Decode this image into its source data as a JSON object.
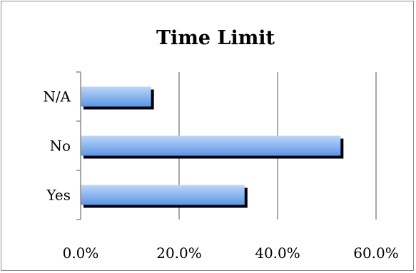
{
  "chart_data": {
    "type": "bar",
    "orientation": "horizontal",
    "title": "Time Limit",
    "xlabel": "",
    "ylabel": "",
    "categories": [
      "Yes",
      "No",
      "N/A"
    ],
    "values": [
      33.3,
      52.8,
      14.3
    ],
    "xlim": [
      0,
      60
    ],
    "x_ticks": [
      "0.0%",
      "20.0%",
      "40.0%",
      "60.0%"
    ],
    "grid": true,
    "legend": "none",
    "colors": {
      "bar_top": "#bcd6fb",
      "bar_bottom": "#5c96e6",
      "bar_shadow": "#000000",
      "gridline": "#8c8c8c",
      "border": "#8c8c8c"
    }
  }
}
